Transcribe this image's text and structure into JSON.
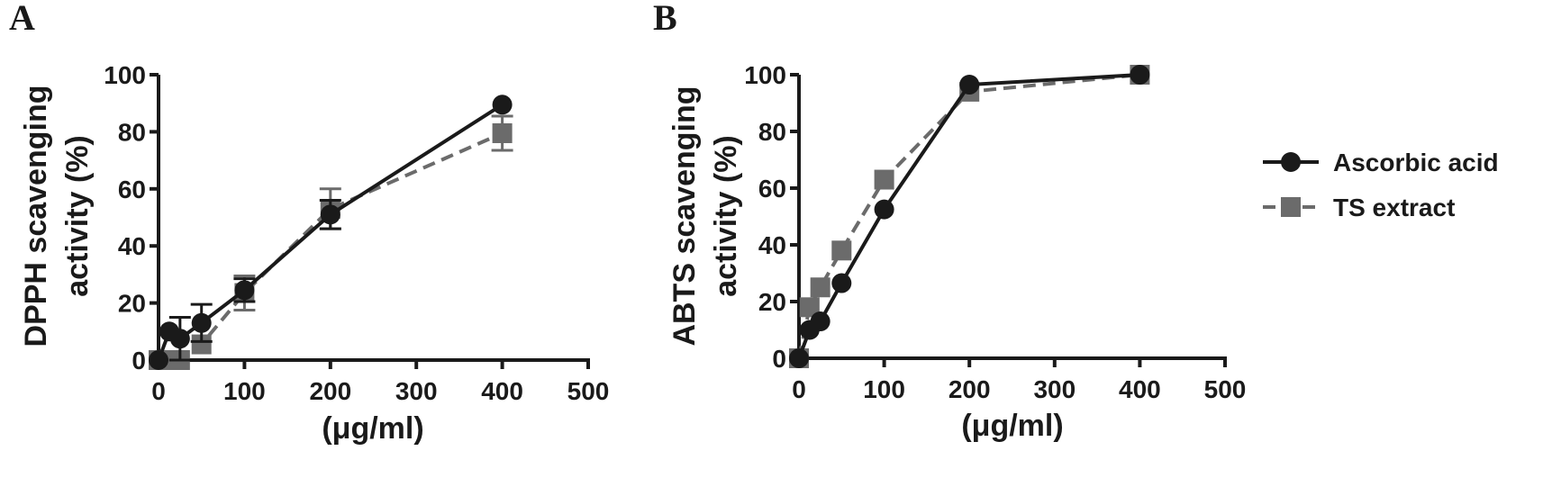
{
  "chart_data": [
    {
      "panel": "A",
      "type": "line",
      "xlabel": "(μg/ml)",
      "ylabel_lines": [
        "DPPH scavenging",
        "activity (%)"
      ],
      "xlim": [
        0,
        500
      ],
      "ylim": [
        0,
        100
      ],
      "xticks": [
        0,
        100,
        200,
        300,
        400,
        500
      ],
      "yticks": [
        0,
        20,
        40,
        60,
        80,
        100
      ],
      "series": [
        {
          "name": "Ascorbic acid",
          "marker": "circle",
          "line": "solid",
          "color": "#1a1a1a",
          "x": [
            0,
            12.5,
            25,
            50,
            100,
            200,
            400
          ],
          "y": [
            0,
            10,
            7.5,
            13,
            24.5,
            51,
            89.5
          ],
          "err": [
            0,
            0,
            7.5,
            6.5,
            4,
            5,
            0
          ]
        },
        {
          "name": "TS extract",
          "marker": "square",
          "line": "dashed",
          "color": "#6b6b6b",
          "x": [
            0,
            12.5,
            25,
            50,
            100,
            200,
            400
          ],
          "y": [
            0,
            0,
            0,
            5.5,
            23.5,
            53,
            79.5
          ],
          "err": [
            0,
            0,
            0,
            0,
            6,
            7,
            6
          ]
        }
      ]
    },
    {
      "panel": "B",
      "type": "line",
      "xlabel": "(μg/ml)",
      "ylabel_lines": [
        "ABTS scavenging",
        "activity (%)"
      ],
      "xlim": [
        0,
        500
      ],
      "ylim": [
        0,
        100
      ],
      "xticks": [
        0,
        100,
        200,
        300,
        400,
        500
      ],
      "yticks": [
        0,
        20,
        40,
        60,
        80,
        100
      ],
      "series": [
        {
          "name": "Ascorbic acid",
          "marker": "circle",
          "line": "solid",
          "color": "#1a1a1a",
          "x": [
            0,
            12.5,
            25,
            50,
            100,
            200,
            400
          ],
          "y": [
            0,
            10,
            13,
            26.5,
            52.5,
            96.5,
            100
          ],
          "err": [
            0,
            0,
            0,
            0,
            0,
            0,
            0
          ]
        },
        {
          "name": "TS extract",
          "marker": "square",
          "line": "dashed",
          "color": "#6b6b6b",
          "x": [
            0,
            12.5,
            25,
            50,
            100,
            200,
            400
          ],
          "y": [
            0,
            18,
            25,
            38,
            63,
            94,
            100
          ],
          "err": [
            0,
            0,
            0,
            0,
            0,
            0,
            0
          ]
        }
      ]
    }
  ],
  "legend": {
    "placement": "right",
    "items": [
      {
        "label": "Ascorbic acid",
        "marker": "circle",
        "line": "solid",
        "color": "#1a1a1a"
      },
      {
        "label": "TS extract",
        "marker": "square",
        "line": "dashed",
        "color": "#6b6b6b"
      }
    ]
  }
}
